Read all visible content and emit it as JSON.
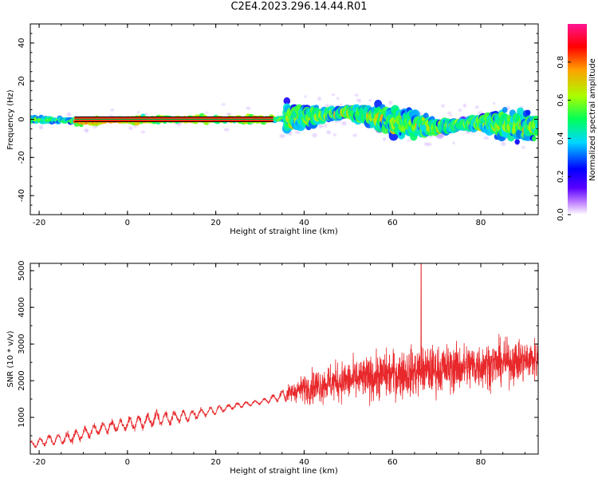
{
  "figure": {
    "title": "C2E4.2023.296.14.44.R01"
  },
  "chart_data": [
    {
      "type": "heatmap",
      "xlabel": "Height of straight line (km)",
      "ylabel": "Frequency (Hz)",
      "xlim": [
        -22,
        93
      ],
      "ylim": [
        -50,
        50
      ],
      "xticks": [
        -20,
        0,
        20,
        40,
        60,
        80
      ],
      "yticks": [
        -40,
        -20,
        0,
        20,
        40
      ],
      "colorbar": {
        "label": "Normalized spectral amplitude",
        "range": [
          0,
          1
        ],
        "ticks": [
          "0.0",
          "0.2",
          "0.4",
          "0.6",
          "0.8"
        ],
        "colors": [
          "#ffffff",
          "#c488ff",
          "#5a00ff",
          "#0000ff",
          "#00d8ff",
          "#00ff5a",
          "#a8ff00",
          "#ffa000",
          "#ff0000",
          "#ff1493"
        ]
      },
      "ridge": [
        {
          "x": -22,
          "f": 0
        },
        {
          "x": -10,
          "f": -1
        },
        {
          "x": 0,
          "f": -0.5
        },
        {
          "x": 10,
          "f": 0
        },
        {
          "x": 20,
          "f": 0
        },
        {
          "x": 33,
          "f": 0
        },
        {
          "x": 40,
          "f": 1
        },
        {
          "x": 50,
          "f": 4
        },
        {
          "x": 60,
          "f": -1
        },
        {
          "x": 70,
          "f": -4
        },
        {
          "x": 80,
          "f": -2
        },
        {
          "x": 93,
          "f": -4
        }
      ],
      "line_segment": {
        "x": [
          -12,
          33
        ],
        "f": 0
      }
    },
    {
      "type": "line",
      "xlabel": "Height of straight line (km)",
      "ylabel": "SNR (10 * v/v)",
      "xlim": [
        -22,
        93
      ],
      "ylim": [
        0,
        5200
      ],
      "xticks": [
        -20,
        0,
        20,
        40,
        60,
        80
      ],
      "yticks": [
        1000,
        2000,
        3000,
        4000,
        5000
      ],
      "color": "#e8282b",
      "series": [
        {
          "x": [
            -22,
            -18,
            -14,
            -10,
            -6,
            -2,
            2,
            6,
            10,
            14,
            18,
            22,
            26,
            30,
            34,
            38,
            42,
            46,
            50,
            54,
            58,
            62,
            66,
            70,
            74,
            78,
            82,
            86,
            90,
            93
          ],
          "y": [
            250,
            380,
            420,
            550,
            700,
            780,
            850,
            950,
            1000,
            1050,
            1150,
            1250,
            1350,
            1420,
            1550,
            1720,
            1850,
            1950,
            2000,
            2050,
            2150,
            2200,
            2250,
            2300,
            2350,
            2400,
            2450,
            2500,
            2550,
            2600
          ],
          "spread": [
            150,
            200,
            250,
            250,
            250,
            250,
            300,
            300,
            300,
            250,
            200,
            150,
            100,
            100,
            200,
            450,
            700,
            800,
            850,
            900,
            1000,
            1000,
            1050,
            1000,
            1000,
            1000,
            950,
            900,
            900,
            850
          ]
        }
      ],
      "peak": {
        "x": 66.5,
        "y": 5200
      }
    }
  ]
}
